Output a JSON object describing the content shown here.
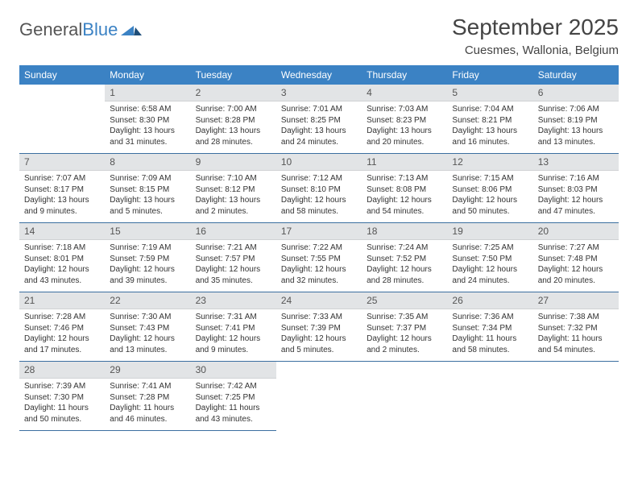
{
  "brand": {
    "part1": "General",
    "part2": "Blue"
  },
  "title": "September 2025",
  "location": "Cuesmes, Wallonia, Belgium",
  "colors": {
    "header_bg": "#3b82c4",
    "header_text": "#ffffff",
    "daynum_bg": "#e2e4e6",
    "cell_border": "#3b6fa0",
    "page_bg": "#ffffff",
    "text": "#333333"
  },
  "weekdays": [
    "Sunday",
    "Monday",
    "Tuesday",
    "Wednesday",
    "Thursday",
    "Friday",
    "Saturday"
  ],
  "layout": {
    "first_weekday_index": 1,
    "days_in_month": 30,
    "rows": 5,
    "cols": 7
  },
  "days": {
    "1": {
      "sunrise": "Sunrise: 6:58 AM",
      "sunset": "Sunset: 8:30 PM",
      "daylight1": "Daylight: 13 hours",
      "daylight2": "and 31 minutes."
    },
    "2": {
      "sunrise": "Sunrise: 7:00 AM",
      "sunset": "Sunset: 8:28 PM",
      "daylight1": "Daylight: 13 hours",
      "daylight2": "and 28 minutes."
    },
    "3": {
      "sunrise": "Sunrise: 7:01 AM",
      "sunset": "Sunset: 8:25 PM",
      "daylight1": "Daylight: 13 hours",
      "daylight2": "and 24 minutes."
    },
    "4": {
      "sunrise": "Sunrise: 7:03 AM",
      "sunset": "Sunset: 8:23 PM",
      "daylight1": "Daylight: 13 hours",
      "daylight2": "and 20 minutes."
    },
    "5": {
      "sunrise": "Sunrise: 7:04 AM",
      "sunset": "Sunset: 8:21 PM",
      "daylight1": "Daylight: 13 hours",
      "daylight2": "and 16 minutes."
    },
    "6": {
      "sunrise": "Sunrise: 7:06 AM",
      "sunset": "Sunset: 8:19 PM",
      "daylight1": "Daylight: 13 hours",
      "daylight2": "and 13 minutes."
    },
    "7": {
      "sunrise": "Sunrise: 7:07 AM",
      "sunset": "Sunset: 8:17 PM",
      "daylight1": "Daylight: 13 hours",
      "daylight2": "and 9 minutes."
    },
    "8": {
      "sunrise": "Sunrise: 7:09 AM",
      "sunset": "Sunset: 8:15 PM",
      "daylight1": "Daylight: 13 hours",
      "daylight2": "and 5 minutes."
    },
    "9": {
      "sunrise": "Sunrise: 7:10 AM",
      "sunset": "Sunset: 8:12 PM",
      "daylight1": "Daylight: 13 hours",
      "daylight2": "and 2 minutes."
    },
    "10": {
      "sunrise": "Sunrise: 7:12 AM",
      "sunset": "Sunset: 8:10 PM",
      "daylight1": "Daylight: 12 hours",
      "daylight2": "and 58 minutes."
    },
    "11": {
      "sunrise": "Sunrise: 7:13 AM",
      "sunset": "Sunset: 8:08 PM",
      "daylight1": "Daylight: 12 hours",
      "daylight2": "and 54 minutes."
    },
    "12": {
      "sunrise": "Sunrise: 7:15 AM",
      "sunset": "Sunset: 8:06 PM",
      "daylight1": "Daylight: 12 hours",
      "daylight2": "and 50 minutes."
    },
    "13": {
      "sunrise": "Sunrise: 7:16 AM",
      "sunset": "Sunset: 8:03 PM",
      "daylight1": "Daylight: 12 hours",
      "daylight2": "and 47 minutes."
    },
    "14": {
      "sunrise": "Sunrise: 7:18 AM",
      "sunset": "Sunset: 8:01 PM",
      "daylight1": "Daylight: 12 hours",
      "daylight2": "and 43 minutes."
    },
    "15": {
      "sunrise": "Sunrise: 7:19 AM",
      "sunset": "Sunset: 7:59 PM",
      "daylight1": "Daylight: 12 hours",
      "daylight2": "and 39 minutes."
    },
    "16": {
      "sunrise": "Sunrise: 7:21 AM",
      "sunset": "Sunset: 7:57 PM",
      "daylight1": "Daylight: 12 hours",
      "daylight2": "and 35 minutes."
    },
    "17": {
      "sunrise": "Sunrise: 7:22 AM",
      "sunset": "Sunset: 7:55 PM",
      "daylight1": "Daylight: 12 hours",
      "daylight2": "and 32 minutes."
    },
    "18": {
      "sunrise": "Sunrise: 7:24 AM",
      "sunset": "Sunset: 7:52 PM",
      "daylight1": "Daylight: 12 hours",
      "daylight2": "and 28 minutes."
    },
    "19": {
      "sunrise": "Sunrise: 7:25 AM",
      "sunset": "Sunset: 7:50 PM",
      "daylight1": "Daylight: 12 hours",
      "daylight2": "and 24 minutes."
    },
    "20": {
      "sunrise": "Sunrise: 7:27 AM",
      "sunset": "Sunset: 7:48 PM",
      "daylight1": "Daylight: 12 hours",
      "daylight2": "and 20 minutes."
    },
    "21": {
      "sunrise": "Sunrise: 7:28 AM",
      "sunset": "Sunset: 7:46 PM",
      "daylight1": "Daylight: 12 hours",
      "daylight2": "and 17 minutes."
    },
    "22": {
      "sunrise": "Sunrise: 7:30 AM",
      "sunset": "Sunset: 7:43 PM",
      "daylight1": "Daylight: 12 hours",
      "daylight2": "and 13 minutes."
    },
    "23": {
      "sunrise": "Sunrise: 7:31 AM",
      "sunset": "Sunset: 7:41 PM",
      "daylight1": "Daylight: 12 hours",
      "daylight2": "and 9 minutes."
    },
    "24": {
      "sunrise": "Sunrise: 7:33 AM",
      "sunset": "Sunset: 7:39 PM",
      "daylight1": "Daylight: 12 hours",
      "daylight2": "and 5 minutes."
    },
    "25": {
      "sunrise": "Sunrise: 7:35 AM",
      "sunset": "Sunset: 7:37 PM",
      "daylight1": "Daylight: 12 hours",
      "daylight2": "and 2 minutes."
    },
    "26": {
      "sunrise": "Sunrise: 7:36 AM",
      "sunset": "Sunset: 7:34 PM",
      "daylight1": "Daylight: 11 hours",
      "daylight2": "and 58 minutes."
    },
    "27": {
      "sunrise": "Sunrise: 7:38 AM",
      "sunset": "Sunset: 7:32 PM",
      "daylight1": "Daylight: 11 hours",
      "daylight2": "and 54 minutes."
    },
    "28": {
      "sunrise": "Sunrise: 7:39 AM",
      "sunset": "Sunset: 7:30 PM",
      "daylight1": "Daylight: 11 hours",
      "daylight2": "and 50 minutes."
    },
    "29": {
      "sunrise": "Sunrise: 7:41 AM",
      "sunset": "Sunset: 7:28 PM",
      "daylight1": "Daylight: 11 hours",
      "daylight2": "and 46 minutes."
    },
    "30": {
      "sunrise": "Sunrise: 7:42 AM",
      "sunset": "Sunset: 7:25 PM",
      "daylight1": "Daylight: 11 hours",
      "daylight2": "and 43 minutes."
    }
  }
}
